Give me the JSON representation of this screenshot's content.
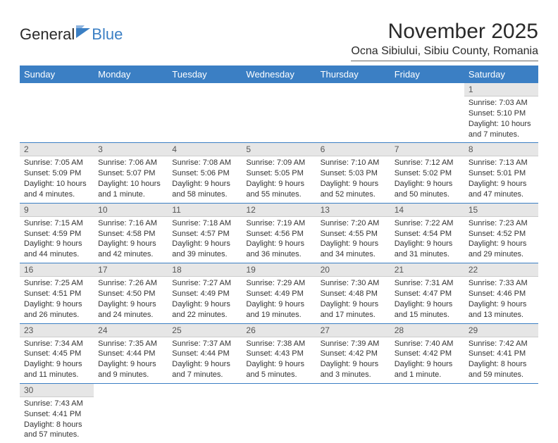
{
  "logo": {
    "part1": "General",
    "part2": "Blue"
  },
  "title": "November 2025",
  "location": "Ocna Sibiului, Sibiu County, Romania",
  "colors": {
    "header_bg": "#3b7fc4",
    "header_text": "#ffffff",
    "daynum_bg": "#e6e6e6",
    "row_divider": "#3b7fc4"
  },
  "weekdays": [
    "Sunday",
    "Monday",
    "Tuesday",
    "Wednesday",
    "Thursday",
    "Friday",
    "Saturday"
  ],
  "weeks": [
    [
      null,
      null,
      null,
      null,
      null,
      null,
      {
        "n": "1",
        "sunrise": "Sunrise: 7:03 AM",
        "sunset": "Sunset: 5:10 PM",
        "day1": "Daylight: 10 hours",
        "day2": "and 7 minutes."
      }
    ],
    [
      {
        "n": "2",
        "sunrise": "Sunrise: 7:05 AM",
        "sunset": "Sunset: 5:09 PM",
        "day1": "Daylight: 10 hours",
        "day2": "and 4 minutes."
      },
      {
        "n": "3",
        "sunrise": "Sunrise: 7:06 AM",
        "sunset": "Sunset: 5:07 PM",
        "day1": "Daylight: 10 hours",
        "day2": "and 1 minute."
      },
      {
        "n": "4",
        "sunrise": "Sunrise: 7:08 AM",
        "sunset": "Sunset: 5:06 PM",
        "day1": "Daylight: 9 hours",
        "day2": "and 58 minutes."
      },
      {
        "n": "5",
        "sunrise": "Sunrise: 7:09 AM",
        "sunset": "Sunset: 5:05 PM",
        "day1": "Daylight: 9 hours",
        "day2": "and 55 minutes."
      },
      {
        "n": "6",
        "sunrise": "Sunrise: 7:10 AM",
        "sunset": "Sunset: 5:03 PM",
        "day1": "Daylight: 9 hours",
        "day2": "and 52 minutes."
      },
      {
        "n": "7",
        "sunrise": "Sunrise: 7:12 AM",
        "sunset": "Sunset: 5:02 PM",
        "day1": "Daylight: 9 hours",
        "day2": "and 50 minutes."
      },
      {
        "n": "8",
        "sunrise": "Sunrise: 7:13 AM",
        "sunset": "Sunset: 5:01 PM",
        "day1": "Daylight: 9 hours",
        "day2": "and 47 minutes."
      }
    ],
    [
      {
        "n": "9",
        "sunrise": "Sunrise: 7:15 AM",
        "sunset": "Sunset: 4:59 PM",
        "day1": "Daylight: 9 hours",
        "day2": "and 44 minutes."
      },
      {
        "n": "10",
        "sunrise": "Sunrise: 7:16 AM",
        "sunset": "Sunset: 4:58 PM",
        "day1": "Daylight: 9 hours",
        "day2": "and 42 minutes."
      },
      {
        "n": "11",
        "sunrise": "Sunrise: 7:18 AM",
        "sunset": "Sunset: 4:57 PM",
        "day1": "Daylight: 9 hours",
        "day2": "and 39 minutes."
      },
      {
        "n": "12",
        "sunrise": "Sunrise: 7:19 AM",
        "sunset": "Sunset: 4:56 PM",
        "day1": "Daylight: 9 hours",
        "day2": "and 36 minutes."
      },
      {
        "n": "13",
        "sunrise": "Sunrise: 7:20 AM",
        "sunset": "Sunset: 4:55 PM",
        "day1": "Daylight: 9 hours",
        "day2": "and 34 minutes."
      },
      {
        "n": "14",
        "sunrise": "Sunrise: 7:22 AM",
        "sunset": "Sunset: 4:54 PM",
        "day1": "Daylight: 9 hours",
        "day2": "and 31 minutes."
      },
      {
        "n": "15",
        "sunrise": "Sunrise: 7:23 AM",
        "sunset": "Sunset: 4:52 PM",
        "day1": "Daylight: 9 hours",
        "day2": "and 29 minutes."
      }
    ],
    [
      {
        "n": "16",
        "sunrise": "Sunrise: 7:25 AM",
        "sunset": "Sunset: 4:51 PM",
        "day1": "Daylight: 9 hours",
        "day2": "and 26 minutes."
      },
      {
        "n": "17",
        "sunrise": "Sunrise: 7:26 AM",
        "sunset": "Sunset: 4:50 PM",
        "day1": "Daylight: 9 hours",
        "day2": "and 24 minutes."
      },
      {
        "n": "18",
        "sunrise": "Sunrise: 7:27 AM",
        "sunset": "Sunset: 4:49 PM",
        "day1": "Daylight: 9 hours",
        "day2": "and 22 minutes."
      },
      {
        "n": "19",
        "sunrise": "Sunrise: 7:29 AM",
        "sunset": "Sunset: 4:49 PM",
        "day1": "Daylight: 9 hours",
        "day2": "and 19 minutes."
      },
      {
        "n": "20",
        "sunrise": "Sunrise: 7:30 AM",
        "sunset": "Sunset: 4:48 PM",
        "day1": "Daylight: 9 hours",
        "day2": "and 17 minutes."
      },
      {
        "n": "21",
        "sunrise": "Sunrise: 7:31 AM",
        "sunset": "Sunset: 4:47 PM",
        "day1": "Daylight: 9 hours",
        "day2": "and 15 minutes."
      },
      {
        "n": "22",
        "sunrise": "Sunrise: 7:33 AM",
        "sunset": "Sunset: 4:46 PM",
        "day1": "Daylight: 9 hours",
        "day2": "and 13 minutes."
      }
    ],
    [
      {
        "n": "23",
        "sunrise": "Sunrise: 7:34 AM",
        "sunset": "Sunset: 4:45 PM",
        "day1": "Daylight: 9 hours",
        "day2": "and 11 minutes."
      },
      {
        "n": "24",
        "sunrise": "Sunrise: 7:35 AM",
        "sunset": "Sunset: 4:44 PM",
        "day1": "Daylight: 9 hours",
        "day2": "and 9 minutes."
      },
      {
        "n": "25",
        "sunrise": "Sunrise: 7:37 AM",
        "sunset": "Sunset: 4:44 PM",
        "day1": "Daylight: 9 hours",
        "day2": "and 7 minutes."
      },
      {
        "n": "26",
        "sunrise": "Sunrise: 7:38 AM",
        "sunset": "Sunset: 4:43 PM",
        "day1": "Daylight: 9 hours",
        "day2": "and 5 minutes."
      },
      {
        "n": "27",
        "sunrise": "Sunrise: 7:39 AM",
        "sunset": "Sunset: 4:42 PM",
        "day1": "Daylight: 9 hours",
        "day2": "and 3 minutes."
      },
      {
        "n": "28",
        "sunrise": "Sunrise: 7:40 AM",
        "sunset": "Sunset: 4:42 PM",
        "day1": "Daylight: 9 hours",
        "day2": "and 1 minute."
      },
      {
        "n": "29",
        "sunrise": "Sunrise: 7:42 AM",
        "sunset": "Sunset: 4:41 PM",
        "day1": "Daylight: 8 hours",
        "day2": "and 59 minutes."
      }
    ],
    [
      {
        "n": "30",
        "sunrise": "Sunrise: 7:43 AM",
        "sunset": "Sunset: 4:41 PM",
        "day1": "Daylight: 8 hours",
        "day2": "and 57 minutes."
      },
      null,
      null,
      null,
      null,
      null,
      null
    ]
  ]
}
